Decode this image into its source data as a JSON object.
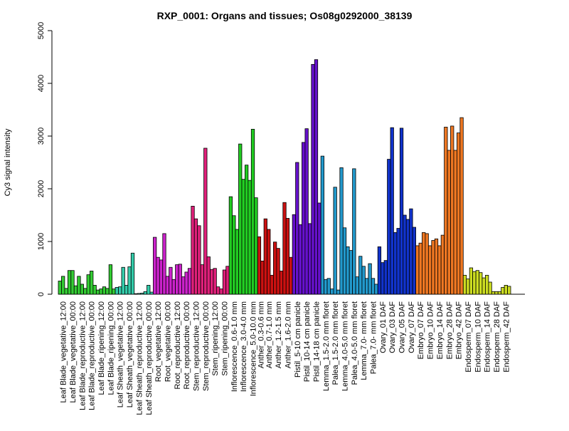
{
  "chart_data": {
    "type": "bar",
    "title": "RXP_0001: Organs and tissues; Os08g0292000_38139",
    "xlabel": "",
    "ylabel": "Cy3 signal intensity",
    "ylim": [
      0,
      5000
    ],
    "yticks": [
      0,
      1000,
      2000,
      3000,
      4000,
      5000
    ],
    "grid": false,
    "legend": "none",
    "groups": [
      {
        "label": "Leaf Blade_vegetative_12:00",
        "color": "#33cc33",
        "values": [
          250,
          340,
          110
        ]
      },
      {
        "label": "Leaf Blade_vegetative_00:00",
        "color": "#33cc33",
        "values": [
          450,
          450,
          160
        ]
      },
      {
        "label": "Leaf Blade_reproductive_12:00",
        "color": "#33cc33",
        "values": [
          340,
          190,
          110
        ]
      },
      {
        "label": "Leaf Blade_reproductive_00:00",
        "color": "#33cc33",
        "values": [
          370,
          440,
          170
        ]
      },
      {
        "label": "Leaf Blade_ripening_12:00",
        "color": "#33cc33",
        "values": [
          80,
          100,
          140
        ]
      },
      {
        "label": "Leaf Blade_ripening_00:00",
        "color": "#33cc33",
        "values": [
          110,
          560,
          100
        ]
      },
      {
        "label": "Leaf Sheath_vegetative_12:00",
        "color": "#33ccaa",
        "values": [
          130,
          140,
          510
        ]
      },
      {
        "label": "Leaf Sheath_vegetative_00:00",
        "color": "#33ccaa",
        "values": [
          170,
          520,
          780
        ]
      },
      {
        "label": "Leaf Sheath_reproductive_12:00",
        "color": "#33ccaa",
        "values": [
          10,
          15,
          20
        ]
      },
      {
        "label": "Leaf Sheath_reproductive_00:00",
        "color": "#33ccaa",
        "values": [
          50,
          170,
          40
        ]
      },
      {
        "label": "Root_vegetative_12:00",
        "color": "#cc22cc",
        "values": [
          1080,
          700,
          650
        ]
      },
      {
        "label": "Root_vegetative_00:00",
        "color": "#cc22cc",
        "values": [
          1150,
          340,
          510
        ]
      },
      {
        "label": "Root_reproductive_12:00",
        "color": "#cc22cc",
        "values": [
          280,
          560,
          570
        ]
      },
      {
        "label": "Root_reproductive_00:00",
        "color": "#cc22cc",
        "values": [
          330,
          420,
          490
        ]
      },
      {
        "label": "Stem_reproductive_12:00",
        "color": "#e0207a",
        "values": [
          1670,
          1430,
          1300
        ]
      },
      {
        "label": "Stem_reproductive_00:00",
        "color": "#e0207a",
        "values": [
          560,
          2770,
          710
        ]
      },
      {
        "label": "Stem_ripening_12:00",
        "color": "#e0207a",
        "values": [
          470,
          490,
          140
        ]
      },
      {
        "label": "Stem_ripening_00:00",
        "color": "#e0207a",
        "values": [
          100,
          460,
          530
        ]
      },
      {
        "label": "Inflorescence_0.6-1.0 mm",
        "color": "#22cc22",
        "values": [
          1850,
          1490,
          1230
        ]
      },
      {
        "label": "Inflorescence_3.0-4.0 mm",
        "color": "#22cc22",
        "values": [
          2850,
          2180,
          2450
        ]
      },
      {
        "label": "Inflorescence_5.0-10.0 mm",
        "color": "#22cc22",
        "values": [
          2160,
          3130,
          1830
        ]
      },
      {
        "label": "Anther_0.3-0.6 mm",
        "color": "#cc1111",
        "values": [
          1090,
          630
        ]
      },
      {
        "label": "Anther_0.7-1.0 mm",
        "color": "#cc1111",
        "values": [
          1430,
          1230,
          360
        ]
      },
      {
        "label": "Anther_1.2-1.5 mm",
        "color": "#cc1111",
        "values": [
          990,
          870,
          440
        ]
      },
      {
        "label": "Anther_1.6-2.0 mm",
        "color": "#cc1111",
        "values": [
          1740,
          1440,
          700
        ]
      },
      {
        "label": "Pistil_5-10 cm panicle",
        "color": "#6611cc",
        "values": [
          1510,
          2500,
          1320
        ]
      },
      {
        "label": "Pistil_10-14 cm panicle",
        "color": "#6611cc",
        "values": [
          2880,
          3140,
          1340
        ]
      },
      {
        "label": "Pistil_14-18 cm panicle",
        "color": "#6611cc",
        "values": [
          4360,
          4450,
          1730
        ]
      },
      {
        "label": "Lemma_1.5-2.0 mm floret",
        "color": "#2299cc",
        "values": [
          2620,
          280,
          300
        ]
      },
      {
        "label": "Palea_1.5-2.0 mm floret",
        "color": "#2299cc",
        "values": [
          100,
          2030,
          80
        ]
      },
      {
        "label": "Lemma_4.0-5.0 mm floret",
        "color": "#2299cc",
        "values": [
          2400,
          1260,
          900
        ]
      },
      {
        "label": "Palea_4.0-5.0 mm floret",
        "color": "#2299cc",
        "values": [
          830,
          2380,
          330
        ]
      },
      {
        "label": "Lemma_7.0- mm floret",
        "color": "#2299cc",
        "values": [
          720,
          530,
          300
        ]
      },
      {
        "label": "Palea_7.0- mm floret",
        "color": "#2299cc",
        "values": [
          580,
          300,
          190
        ]
      },
      {
        "label": "Ovary_01 DAF",
        "color": "#1133cc",
        "values": [
          900,
          600,
          640
        ]
      },
      {
        "label": "Ovary_03 DAF",
        "color": "#1133cc",
        "values": [
          2560,
          3160,
          1170
        ]
      },
      {
        "label": "Ovary_05 DAF",
        "color": "#1133cc",
        "values": [
          1250,
          3150,
          1500
        ]
      },
      {
        "label": "Ovary_07 DAF",
        "color": "#1133cc",
        "values": [
          1420,
          1620,
          1270
        ]
      },
      {
        "label": "Embryo_07 DAF",
        "color": "#ee7722",
        "values": [
          920,
          970,
          1170
        ]
      },
      {
        "label": "Embryo_10 DAF",
        "color": "#ee7722",
        "values": [
          1150,
          920,
          1020
        ]
      },
      {
        "label": "Embryo_14 DAF",
        "color": "#ee7722",
        "values": [
          1050,
          920,
          1120
        ]
      },
      {
        "label": "Embryo_28 DAF",
        "color": "#ee7722",
        "values": [
          3170,
          2730,
          3190
        ]
      },
      {
        "label": "Embryo_42 DAF",
        "color": "#ee7722",
        "values": [
          2730,
          3060,
          3350
        ]
      },
      {
        "label": "Endosperm_07 DAF",
        "color": "#ccdd22",
        "values": [
          360,
          290,
          500
        ]
      },
      {
        "label": "Endosperm_10 DAF",
        "color": "#ccdd22",
        "values": [
          430,
          450,
          410
        ]
      },
      {
        "label": "Endosperm_14 DAF",
        "color": "#ccdd22",
        "values": [
          310,
          360,
          230
        ]
      },
      {
        "label": "Endosperm_28 DAF",
        "color": "#ccdd22",
        "values": [
          50,
          50,
          50
        ]
      },
      {
        "label": "Endosperm_42 DAF",
        "color": "#ccdd22",
        "values": [
          130,
          170,
          150
        ]
      }
    ]
  }
}
